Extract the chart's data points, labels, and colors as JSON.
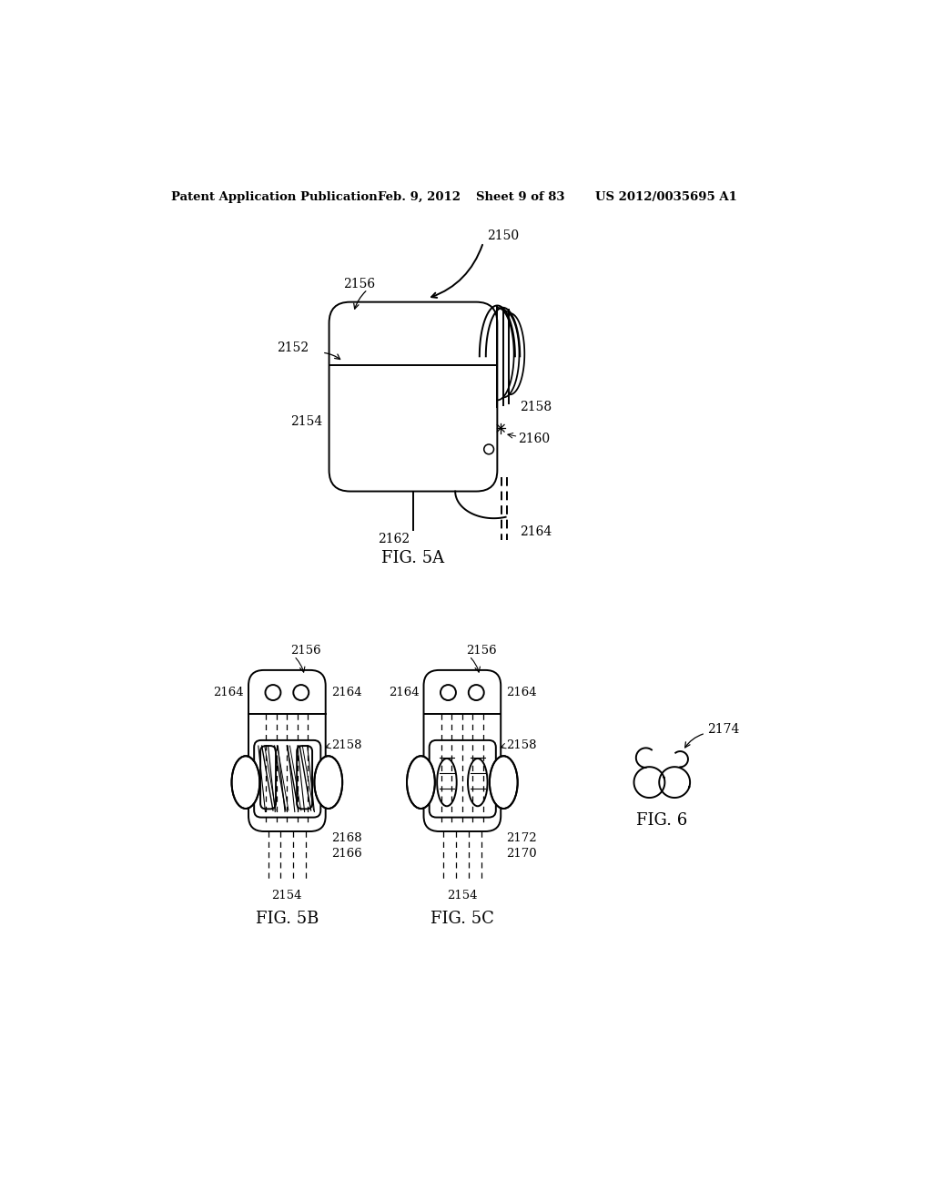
{
  "bg_color": "#ffffff",
  "header_text": "Patent Application Publication",
  "header_date": "Feb. 9, 2012",
  "header_sheet": "Sheet 9 of 83",
  "header_patent": "US 2012/0035695 A1",
  "fig5a_label": "FIG. 5A",
  "fig5b_label": "FIG. 5B",
  "fig5c_label": "FIG. 5C",
  "fig6_label": "FIG. 6",
  "lc": "#000000",
  "lw": 1.4
}
